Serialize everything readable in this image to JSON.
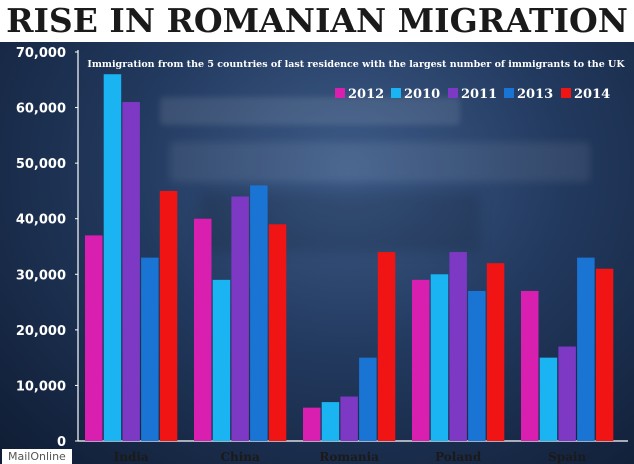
{
  "chart_data": {
    "type": "bar",
    "title": "RISE IN ROMANIAN MIGRATION",
    "subtitle": "Immigration from the 5 countries of last residence with the largest number of immigrants to the UK",
    "xlabel": "",
    "ylabel": "",
    "ylim": [
      0,
      70000
    ],
    "yticks": [
      0,
      10000,
      20000,
      30000,
      40000,
      50000,
      60000,
      70000
    ],
    "ytick_labels": [
      "0",
      "10,000",
      "20,000",
      "30,000",
      "40,000",
      "50,000",
      "60,000",
      "70,000"
    ],
    "categories": [
      "India",
      "China",
      "Romania",
      "Poland",
      "Spain"
    ],
    "series": [
      {
        "name": "2012",
        "color": "#d81fb0",
        "values": [
          37000,
          40000,
          6000,
          29000,
          27000
        ]
      },
      {
        "name": "2010",
        "color": "#1ab4f2",
        "values": [
          66000,
          29000,
          7000,
          30000,
          15000
        ]
      },
      {
        "name": "2011",
        "color": "#7d39c4",
        "values": [
          61000,
          44000,
          8000,
          34000,
          17000
        ]
      },
      {
        "name": "2013",
        "color": "#1a74d4",
        "values": [
          33000,
          46000,
          15000,
          27000,
          33000
        ]
      },
      {
        "name": "2014",
        "color": "#f01414",
        "values": [
          45000,
          39000,
          34000,
          32000,
          31000
        ]
      }
    ],
    "legend_position": "top-right",
    "grid": false
  },
  "credit": "MailOnline"
}
